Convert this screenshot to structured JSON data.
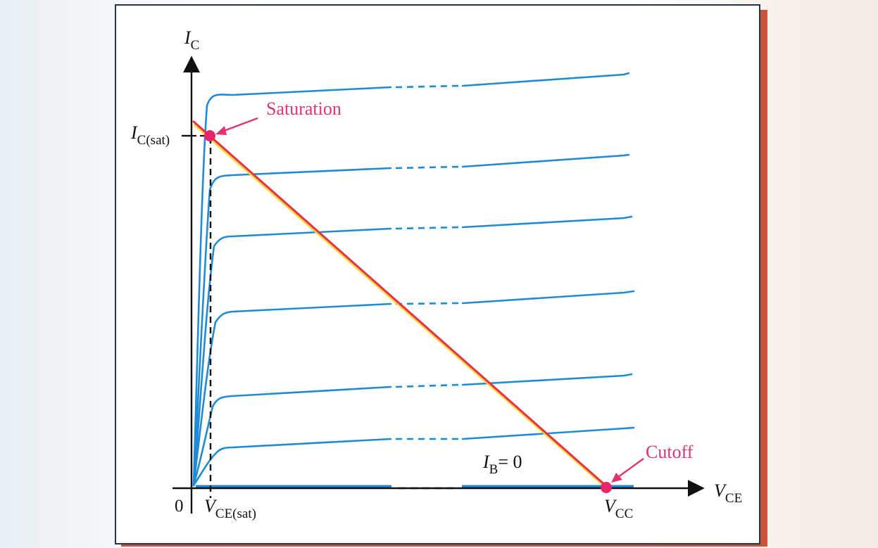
{
  "labels": {
    "y_axis_main": "I",
    "y_axis_sub": "C",
    "x_axis_main": "V",
    "x_axis_sub": "CE",
    "origin": "0",
    "ic_sat_main": "I",
    "ic_sat_sub": "C(sat)",
    "vce_sat_main": "V",
    "vce_sat_sub": "CE(sat)",
    "vcc_main": "V",
    "vcc_sub": "CC",
    "ib_main": "I",
    "ib_sub": "B",
    "ib_value": "= 0"
  },
  "annotations": {
    "saturation": "Saturation",
    "cutoff": "Cutoff"
  },
  "colors": {
    "curve": "#1f8bd4",
    "load_line": "#e8304a",
    "load_line_highlight": "#f2d83a",
    "marker": "#e8246b",
    "annotation": "#e0336f",
    "frame": "#1f3552",
    "frame_shadow": "#c8553a"
  }
}
